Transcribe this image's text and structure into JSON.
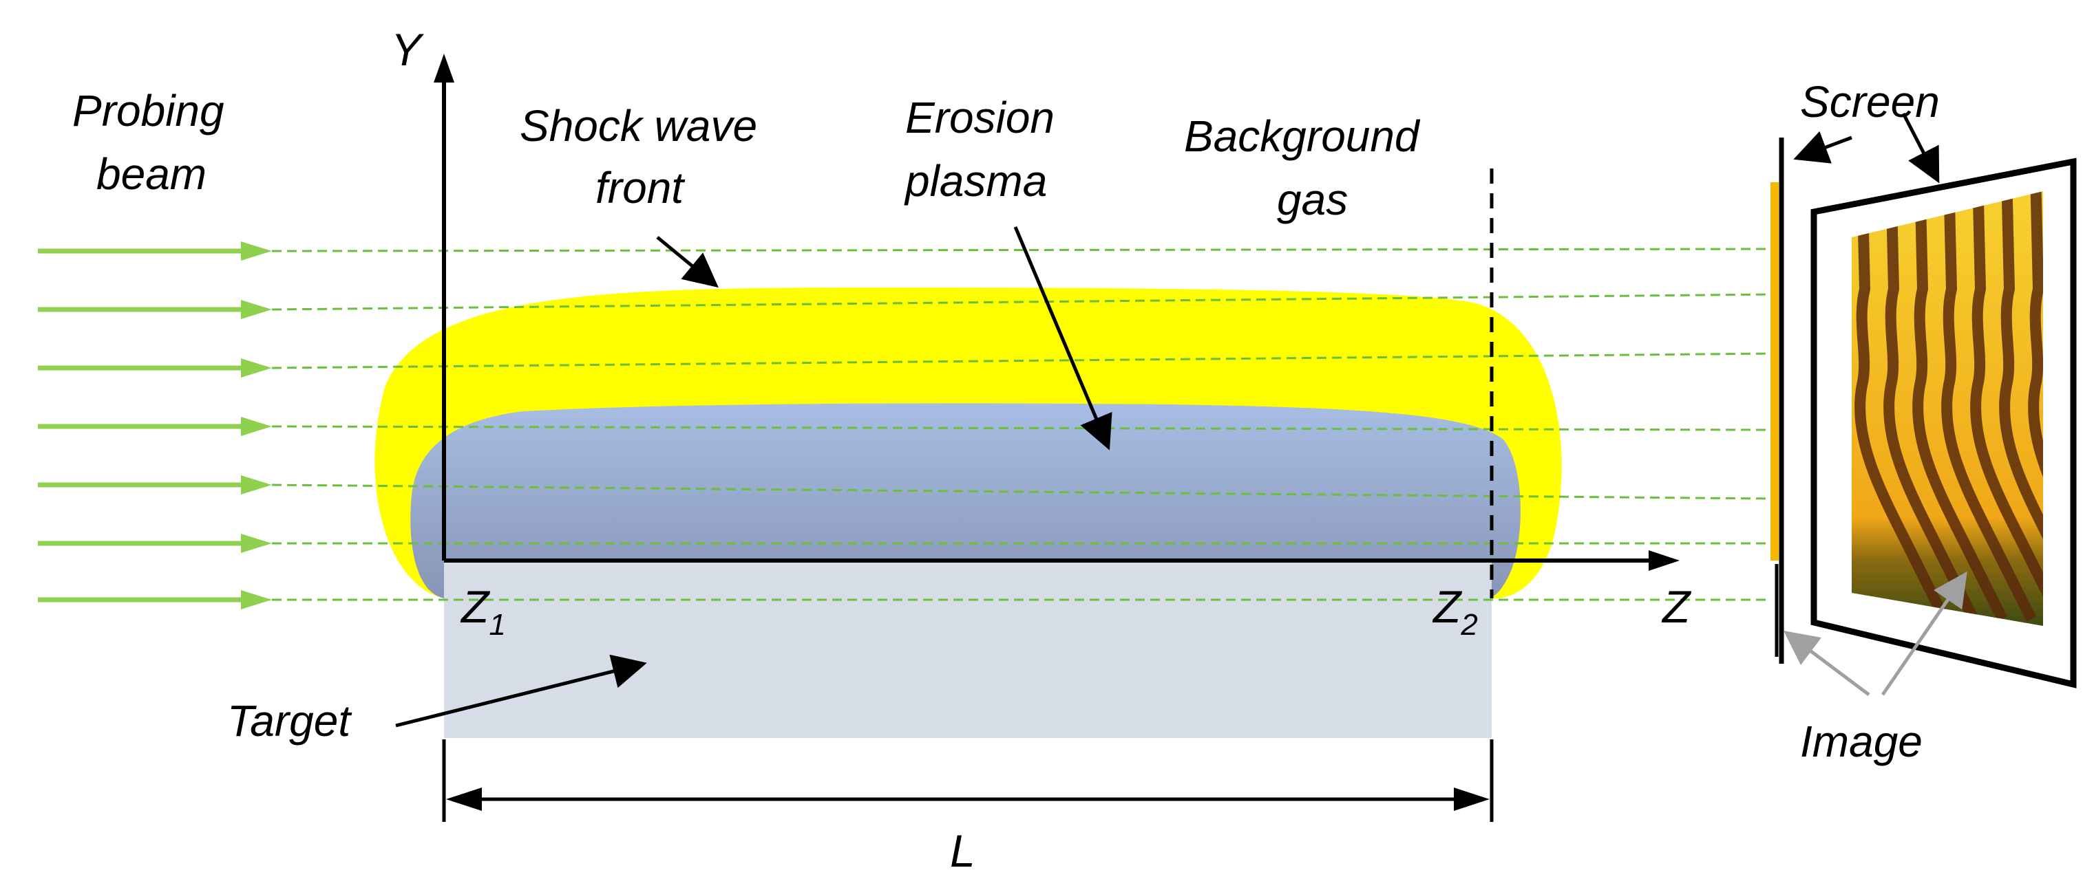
{
  "labels": {
    "probing_beam_line1": "Probing",
    "probing_beam_line2": "beam",
    "shock_line1": "Shock wave",
    "shock_line2": "front",
    "erosion_line1": "Erosion",
    "erosion_line2": "plasma",
    "background_line1": "Background",
    "background_line2": "gas",
    "screen": "Screen",
    "image": "Image",
    "target": "Target",
    "y_axis": "Y",
    "z_axis": "Z",
    "z1_base": "Z",
    "z1_sub": "1",
    "z2_base": "Z",
    "z2_sub": "2",
    "length": "L"
  },
  "colors": {
    "beam": "#8fd14f",
    "shock": "#ffff00",
    "plasma_top": "#a7bde3",
    "plasma_bottom": "#8896b6",
    "target": "#d6dde7",
    "screen_strip": "#f5b800",
    "axis": "#000000"
  }
}
